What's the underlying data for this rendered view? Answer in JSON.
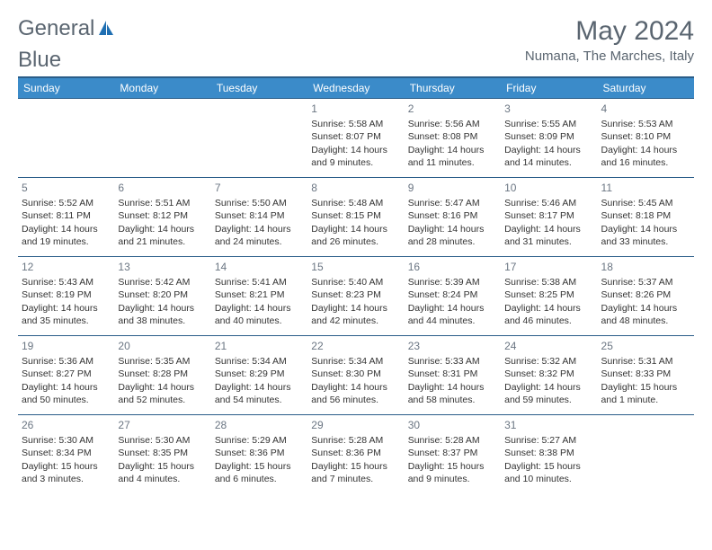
{
  "brand": {
    "text1": "General",
    "text2": "Blue"
  },
  "title": "May 2024",
  "location": "Numana, The Marches, Italy",
  "colors": {
    "header_bg": "#3b8bc9",
    "header_border": "#2a5d89",
    "text_muted": "#5a6570",
    "daynum": "#6b7683",
    "logo_accent": "#1f6fb2"
  },
  "weekdays": [
    "Sunday",
    "Monday",
    "Tuesday",
    "Wednesday",
    "Thursday",
    "Friday",
    "Saturday"
  ],
  "grid": [
    [
      null,
      null,
      null,
      {
        "n": "1",
        "sr": "5:58 AM",
        "ss": "8:07 PM",
        "dl": "14 hours and 9 minutes."
      },
      {
        "n": "2",
        "sr": "5:56 AM",
        "ss": "8:08 PM",
        "dl": "14 hours and 11 minutes."
      },
      {
        "n": "3",
        "sr": "5:55 AM",
        "ss": "8:09 PM",
        "dl": "14 hours and 14 minutes."
      },
      {
        "n": "4",
        "sr": "5:53 AM",
        "ss": "8:10 PM",
        "dl": "14 hours and 16 minutes."
      }
    ],
    [
      {
        "n": "5",
        "sr": "5:52 AM",
        "ss": "8:11 PM",
        "dl": "14 hours and 19 minutes."
      },
      {
        "n": "6",
        "sr": "5:51 AM",
        "ss": "8:12 PM",
        "dl": "14 hours and 21 minutes."
      },
      {
        "n": "7",
        "sr": "5:50 AM",
        "ss": "8:14 PM",
        "dl": "14 hours and 24 minutes."
      },
      {
        "n": "8",
        "sr": "5:48 AM",
        "ss": "8:15 PM",
        "dl": "14 hours and 26 minutes."
      },
      {
        "n": "9",
        "sr": "5:47 AM",
        "ss": "8:16 PM",
        "dl": "14 hours and 28 minutes."
      },
      {
        "n": "10",
        "sr": "5:46 AM",
        "ss": "8:17 PM",
        "dl": "14 hours and 31 minutes."
      },
      {
        "n": "11",
        "sr": "5:45 AM",
        "ss": "8:18 PM",
        "dl": "14 hours and 33 minutes."
      }
    ],
    [
      {
        "n": "12",
        "sr": "5:43 AM",
        "ss": "8:19 PM",
        "dl": "14 hours and 35 minutes."
      },
      {
        "n": "13",
        "sr": "5:42 AM",
        "ss": "8:20 PM",
        "dl": "14 hours and 38 minutes."
      },
      {
        "n": "14",
        "sr": "5:41 AM",
        "ss": "8:21 PM",
        "dl": "14 hours and 40 minutes."
      },
      {
        "n": "15",
        "sr": "5:40 AM",
        "ss": "8:23 PM",
        "dl": "14 hours and 42 minutes."
      },
      {
        "n": "16",
        "sr": "5:39 AM",
        "ss": "8:24 PM",
        "dl": "14 hours and 44 minutes."
      },
      {
        "n": "17",
        "sr": "5:38 AM",
        "ss": "8:25 PM",
        "dl": "14 hours and 46 minutes."
      },
      {
        "n": "18",
        "sr": "5:37 AM",
        "ss": "8:26 PM",
        "dl": "14 hours and 48 minutes."
      }
    ],
    [
      {
        "n": "19",
        "sr": "5:36 AM",
        "ss": "8:27 PM",
        "dl": "14 hours and 50 minutes."
      },
      {
        "n": "20",
        "sr": "5:35 AM",
        "ss": "8:28 PM",
        "dl": "14 hours and 52 minutes."
      },
      {
        "n": "21",
        "sr": "5:34 AM",
        "ss": "8:29 PM",
        "dl": "14 hours and 54 minutes."
      },
      {
        "n": "22",
        "sr": "5:34 AM",
        "ss": "8:30 PM",
        "dl": "14 hours and 56 minutes."
      },
      {
        "n": "23",
        "sr": "5:33 AM",
        "ss": "8:31 PM",
        "dl": "14 hours and 58 minutes."
      },
      {
        "n": "24",
        "sr": "5:32 AM",
        "ss": "8:32 PM",
        "dl": "14 hours and 59 minutes."
      },
      {
        "n": "25",
        "sr": "5:31 AM",
        "ss": "8:33 PM",
        "dl": "15 hours and 1 minute."
      }
    ],
    [
      {
        "n": "26",
        "sr": "5:30 AM",
        "ss": "8:34 PM",
        "dl": "15 hours and 3 minutes."
      },
      {
        "n": "27",
        "sr": "5:30 AM",
        "ss": "8:35 PM",
        "dl": "15 hours and 4 minutes."
      },
      {
        "n": "28",
        "sr": "5:29 AM",
        "ss": "8:36 PM",
        "dl": "15 hours and 6 minutes."
      },
      {
        "n": "29",
        "sr": "5:28 AM",
        "ss": "8:36 PM",
        "dl": "15 hours and 7 minutes."
      },
      {
        "n": "30",
        "sr": "5:28 AM",
        "ss": "8:37 PM",
        "dl": "15 hours and 9 minutes."
      },
      {
        "n": "31",
        "sr": "5:27 AM",
        "ss": "8:38 PM",
        "dl": "15 hours and 10 minutes."
      },
      null
    ]
  ],
  "labels": {
    "sunrise": "Sunrise:",
    "sunset": "Sunset:",
    "daylight": "Daylight:"
  }
}
